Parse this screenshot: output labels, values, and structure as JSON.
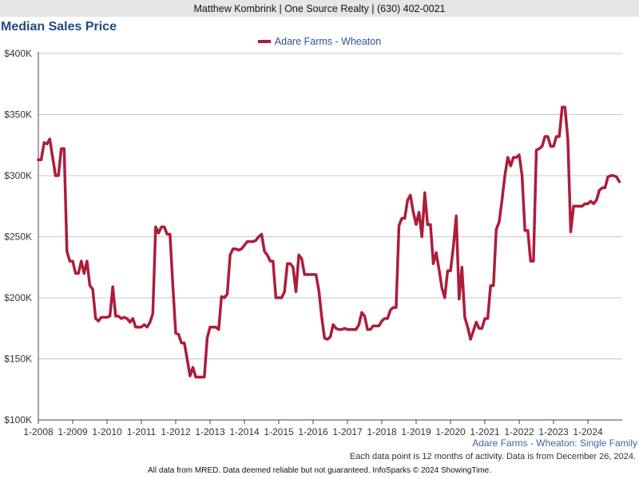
{
  "header": {
    "agent_line": "Matthew Kombrink | One Source Realty | (630) 402-0021"
  },
  "caption": "Adare Farms - Wheaton: Single Family",
  "note": "Each data point is 12 months of activity. Data is from December 26, 2024.",
  "footer": "All data from MRED. Data deemed reliable but not guaranteed. InfoSparks © 2024 ShowingTime.",
  "colors": {
    "series": "#ad1d3b",
    "title": "#214b80",
    "grid": "#c8c8c8",
    "axis": "#444444"
  },
  "chart_data": {
    "type": "line",
    "title": "Median Sales Price",
    "xlabel": "",
    "ylabel": "",
    "legend_position": "top-center",
    "grid": true,
    "ylim": [
      100000,
      400000
    ],
    "xlim": [
      "2008-01",
      "2024-12"
    ],
    "y_ticks": [
      100000,
      150000,
      200000,
      250000,
      300000,
      350000,
      400000
    ],
    "y_tick_labels": [
      "$100K",
      "$150K",
      "$200K",
      "$250K",
      "$300K",
      "$350K",
      "$400K"
    ],
    "x_ticks": [
      "2008-01",
      "2009-01",
      "2010-01",
      "2011-01",
      "2012-01",
      "2013-01",
      "2014-01",
      "2015-01",
      "2016-01",
      "2017-01",
      "2018-01",
      "2019-01",
      "2020-01",
      "2021-01",
      "2022-01",
      "2023-01",
      "2024-01"
    ],
    "x_tick_labels": [
      "1-2008",
      "1-2009",
      "1-2010",
      "1-2011",
      "1-2012",
      "1-2013",
      "1-2014",
      "1-2015",
      "1-2016",
      "1-2017",
      "1-2018",
      "1-2019",
      "1-2020",
      "1-2021",
      "1-2022",
      "1-2023",
      "1-2024"
    ],
    "series": [
      {
        "name": "Adare Farms - Wheaton",
        "points": [
          [
            "2008-01",
            313000
          ],
          [
            "2008-02",
            313000
          ],
          [
            "2008-03",
            327000
          ],
          [
            "2008-04",
            326000
          ],
          [
            "2008-05",
            330000
          ],
          [
            "2008-06",
            315000
          ],
          [
            "2008-07",
            300000
          ],
          [
            "2008-08",
            300000
          ],
          [
            "2008-09",
            322000
          ],
          [
            "2008-10",
            322000
          ],
          [
            "2008-11",
            238000
          ],
          [
            "2008-12",
            230000
          ],
          [
            "2009-01",
            230000
          ],
          [
            "2009-02",
            220000
          ],
          [
            "2009-03",
            220000
          ],
          [
            "2009-04",
            230000
          ],
          [
            "2009-05",
            220000
          ],
          [
            "2009-06",
            230000
          ],
          [
            "2009-07",
            210000
          ],
          [
            "2009-08",
            207000
          ],
          [
            "2009-09",
            183000
          ],
          [
            "2009-10",
            181000
          ],
          [
            "2009-11",
            184000
          ],
          [
            "2009-12",
            184000
          ],
          [
            "2010-01",
            184000
          ],
          [
            "2010-02",
            185000
          ],
          [
            "2010-03",
            209000
          ],
          [
            "2010-04",
            185000
          ],
          [
            "2010-05",
            185000
          ],
          [
            "2010-06",
            183000
          ],
          [
            "2010-07",
            184000
          ],
          [
            "2010-08",
            183000
          ],
          [
            "2010-09",
            180000
          ],
          [
            "2010-10",
            183000
          ],
          [
            "2010-11",
            176000
          ],
          [
            "2010-12",
            176000
          ],
          [
            "2011-01",
            176000
          ],
          [
            "2011-02",
            178000
          ],
          [
            "2011-03",
            176000
          ],
          [
            "2011-04",
            180000
          ],
          [
            "2011-05",
            187000
          ],
          [
            "2011-06",
            258000
          ],
          [
            "2011-07",
            253000
          ],
          [
            "2011-08",
            258000
          ],
          [
            "2011-09",
            258000
          ],
          [
            "2011-10",
            252000
          ],
          [
            "2011-11",
            252000
          ],
          [
            "2011-12",
            210000
          ],
          [
            "2012-01",
            171000
          ],
          [
            "2012-02",
            170000
          ],
          [
            "2012-03",
            163000
          ],
          [
            "2012-04",
            163000
          ],
          [
            "2012-05",
            150000
          ],
          [
            "2012-06",
            136000
          ],
          [
            "2012-07",
            143000
          ],
          [
            "2012-08",
            135000
          ],
          [
            "2012-09",
            135000
          ],
          [
            "2012-10",
            135000
          ],
          [
            "2012-11",
            135000
          ],
          [
            "2012-12",
            167000
          ],
          [
            "2013-01",
            176000
          ],
          [
            "2013-02",
            176000
          ],
          [
            "2013-03",
            176000
          ],
          [
            "2013-04",
            174000
          ],
          [
            "2013-05",
            201000
          ],
          [
            "2013-06",
            200000
          ],
          [
            "2013-07",
            203000
          ],
          [
            "2013-08",
            235000
          ],
          [
            "2013-09",
            240000
          ],
          [
            "2013-10",
            240000
          ],
          [
            "2013-11",
            239000
          ],
          [
            "2013-12",
            240000
          ],
          [
            "2014-01",
            243000
          ],
          [
            "2014-02",
            246000
          ],
          [
            "2014-03",
            246000
          ],
          [
            "2014-04",
            246000
          ],
          [
            "2014-05",
            247000
          ],
          [
            "2014-06",
            250000
          ],
          [
            "2014-07",
            252000
          ],
          [
            "2014-08",
            238000
          ],
          [
            "2014-09",
            235000
          ],
          [
            "2014-10",
            230000
          ],
          [
            "2014-11",
            230000
          ],
          [
            "2014-12",
            200000
          ],
          [
            "2015-01",
            200000
          ],
          [
            "2015-02",
            200000
          ],
          [
            "2015-03",
            205000
          ],
          [
            "2015-04",
            228000
          ],
          [
            "2015-05",
            228000
          ],
          [
            "2015-06",
            225000
          ],
          [
            "2015-07",
            205000
          ],
          [
            "2015-08",
            235000
          ],
          [
            "2015-09",
            232000
          ],
          [
            "2015-10",
            219000
          ],
          [
            "2015-11",
            219000
          ],
          [
            "2015-12",
            219000
          ],
          [
            "2016-01",
            219000
          ],
          [
            "2016-02",
            219000
          ],
          [
            "2016-03",
            206000
          ],
          [
            "2016-04",
            184000
          ],
          [
            "2016-05",
            167000
          ],
          [
            "2016-06",
            166000
          ],
          [
            "2016-07",
            168000
          ],
          [
            "2016-08",
            178000
          ],
          [
            "2016-09",
            175000
          ],
          [
            "2016-10",
            174000
          ],
          [
            "2016-11",
            174000
          ],
          [
            "2016-12",
            175000
          ],
          [
            "2017-01",
            174000
          ],
          [
            "2017-02",
            174000
          ],
          [
            "2017-03",
            174000
          ],
          [
            "2017-04",
            174000
          ],
          [
            "2017-05",
            178000
          ],
          [
            "2017-06",
            188000
          ],
          [
            "2017-07",
            185000
          ],
          [
            "2017-08",
            174000
          ],
          [
            "2017-09",
            174000
          ],
          [
            "2017-10",
            177000
          ],
          [
            "2017-11",
            177000
          ],
          [
            "2017-12",
            177000
          ],
          [
            "2018-01",
            181000
          ],
          [
            "2018-02",
            183000
          ],
          [
            "2018-03",
            183000
          ],
          [
            "2018-04",
            190000
          ],
          [
            "2018-05",
            192000
          ],
          [
            "2018-06",
            192000
          ],
          [
            "2018-07",
            259000
          ],
          [
            "2018-08",
            265000
          ],
          [
            "2018-09",
            265000
          ],
          [
            "2018-10",
            280000
          ],
          [
            "2018-11",
            284000
          ],
          [
            "2018-12",
            270000
          ],
          [
            "2019-01",
            260000
          ],
          [
            "2019-02",
            270000
          ],
          [
            "2019-03",
            250000
          ],
          [
            "2019-04",
            286000
          ],
          [
            "2019-05",
            260000
          ],
          [
            "2019-06",
            260000
          ],
          [
            "2019-07",
            228000
          ],
          [
            "2019-08",
            237000
          ],
          [
            "2019-09",
            223000
          ],
          [
            "2019-10",
            208000
          ],
          [
            "2019-11",
            200000
          ],
          [
            "2019-12",
            222000
          ],
          [
            "2020-01",
            222000
          ],
          [
            "2020-02",
            242000
          ],
          [
            "2020-03",
            267000
          ],
          [
            "2020-04",
            199000
          ],
          [
            "2020-05",
            225000
          ],
          [
            "2020-06",
            184000
          ],
          [
            "2020-07",
            176000
          ],
          [
            "2020-08",
            166000
          ],
          [
            "2020-09",
            173000
          ],
          [
            "2020-10",
            180000
          ],
          [
            "2020-11",
            175000
          ],
          [
            "2020-12",
            175000
          ],
          [
            "2021-01",
            183000
          ],
          [
            "2021-02",
            183000
          ],
          [
            "2021-03",
            210000
          ],
          [
            "2021-04",
            210000
          ],
          [
            "2021-05",
            256000
          ],
          [
            "2021-06",
            262000
          ],
          [
            "2021-07",
            280000
          ],
          [
            "2021-08",
            300000
          ],
          [
            "2021-09",
            315000
          ],
          [
            "2021-10",
            308000
          ],
          [
            "2021-11",
            315000
          ],
          [
            "2021-12",
            315000
          ],
          [
            "2022-01",
            317000
          ],
          [
            "2022-02",
            300000
          ],
          [
            "2022-03",
            255000
          ],
          [
            "2022-04",
            255000
          ],
          [
            "2022-05",
            230000
          ],
          [
            "2022-06",
            230000
          ],
          [
            "2022-07",
            321000
          ],
          [
            "2022-08",
            322000
          ],
          [
            "2022-09",
            324000
          ],
          [
            "2022-10",
            332000
          ],
          [
            "2022-11",
            332000
          ],
          [
            "2022-12",
            324000
          ],
          [
            "2023-01",
            324000
          ],
          [
            "2023-02",
            332000
          ],
          [
            "2023-03",
            332000
          ],
          [
            "2023-04",
            356000
          ],
          [
            "2023-05",
            356000
          ],
          [
            "2023-06",
            330000
          ],
          [
            "2023-07",
            254000
          ],
          [
            "2023-08",
            275000
          ],
          [
            "2023-09",
            275000
          ],
          [
            "2023-10",
            275000
          ],
          [
            "2023-11",
            275000
          ],
          [
            "2023-12",
            277000
          ],
          [
            "2024-01",
            277000
          ],
          [
            "2024-02",
            279000
          ],
          [
            "2024-03",
            277000
          ],
          [
            "2024-04",
            280000
          ],
          [
            "2024-05",
            288000
          ],
          [
            "2024-06",
            290000
          ],
          [
            "2024-07",
            290000
          ],
          [
            "2024-08",
            299000
          ],
          [
            "2024-09",
            300000
          ],
          [
            "2024-10",
            300000
          ],
          [
            "2024-11",
            299000
          ],
          [
            "2024-12",
            295000
          ]
        ]
      }
    ]
  }
}
